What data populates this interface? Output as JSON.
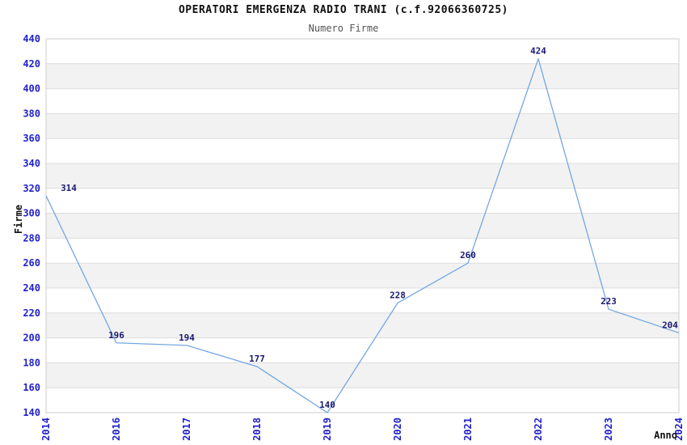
{
  "chart_data": {
    "type": "line",
    "title": "OPERATORI EMERGENZA RADIO TRANI (c.f.92066360725)",
    "subtitle": "Numero Firme",
    "xlabel": "Anno",
    "ylabel": "Firme",
    "categories": [
      "2014",
      "2016",
      "2017",
      "2018",
      "2019",
      "2020",
      "2021",
      "2022",
      "2023",
      "2024"
    ],
    "values": [
      314,
      196,
      194,
      177,
      140,
      228,
      260,
      424,
      223,
      204
    ],
    "data_labels": [
      "314",
      "196",
      "194",
      "177",
      "140",
      "228",
      "260",
      "424",
      "223",
      "204"
    ],
    "ylim": [
      140,
      440
    ],
    "ytick_step": 20,
    "yticks": [
      140,
      160,
      180,
      200,
      220,
      240,
      260,
      280,
      300,
      320,
      340,
      360,
      380,
      400,
      420,
      440
    ],
    "grid": "horizontal-only",
    "legend": "none",
    "colors": {
      "line": "#74a7e2",
      "tick_label": "#2121cc",
      "data_label": "#1a1a70",
      "band_fill": "#f2f2f2",
      "gridline": "#dcdcdc",
      "plot_border": "#cccccc",
      "title": "#111111",
      "subtitle": "#555555",
      "axis_label": "#111111",
      "background": "#ffffff"
    }
  }
}
